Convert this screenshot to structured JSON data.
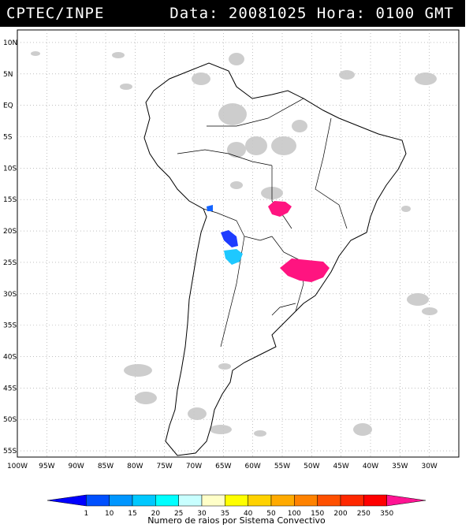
{
  "header": {
    "org": "CPTEC/INPE",
    "stamp": "Data: 20081025 Hora: 0100 GMT"
  },
  "map": {
    "lat_labels": [
      "10N",
      "5N",
      "EQ",
      "5S",
      "10S",
      "15S",
      "20S",
      "25S",
      "30S",
      "35S",
      "40S",
      "45S",
      "50S",
      "55S"
    ],
    "lon_labels": [
      "100W",
      "95W",
      "90W",
      "85W",
      "80W",
      "75W",
      "70W",
      "65W",
      "60W",
      "55W",
      "50W",
      "45W",
      "40W",
      "35W",
      "30W"
    ]
  },
  "legend": {
    "ticks": [
      "1",
      "10",
      "15",
      "20",
      "25",
      "30",
      "35",
      "40",
      "50",
      "100",
      "150",
      "200",
      "250",
      "350"
    ],
    "colors": [
      "#0000ff",
      "#0050ff",
      "#0096ff",
      "#00c8ff",
      "#00ffff",
      "#c8ffff",
      "#ffffc8",
      "#ffff00",
      "#ffd200",
      "#ffaa00",
      "#ff8200",
      "#ff5000",
      "#ff2800",
      "#ff0000",
      "#ff1493"
    ],
    "caption": "Numero de raios por Sistema Convectivo"
  },
  "lightning_colors": {
    "magenta": "#ff1480",
    "blue": "#1464ff",
    "dark_blue": "#1e3cff",
    "cyan": "#1ec8ff"
  }
}
